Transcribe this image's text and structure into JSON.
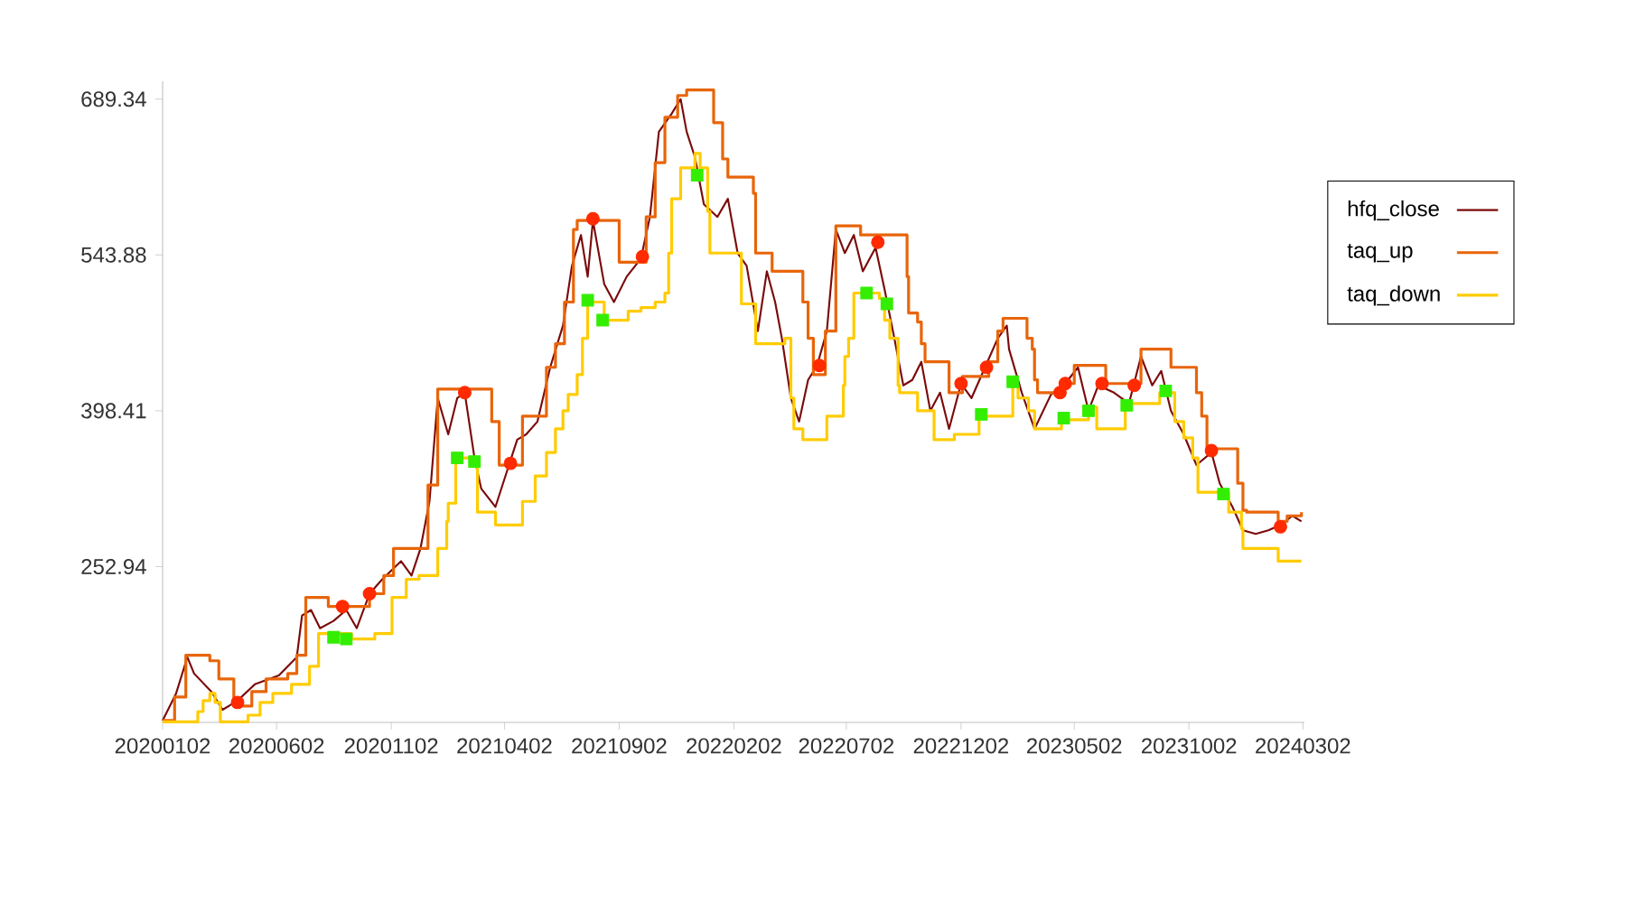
{
  "chart_data": {
    "type": "line",
    "ylim": [
      107.47,
      706
    ],
    "yticks": [
      252.94,
      398.41,
      543.88,
      689.34
    ],
    "xlim": [
      "2020-01-02",
      "2024-03-04"
    ],
    "xticks": [
      {
        "value": "2020-01-02",
        "label": "20200102"
      },
      {
        "value": "2020-06-02",
        "label": "20200602"
      },
      {
        "value": "2020-11-02",
        "label": "20201102"
      },
      {
        "value": "2021-04-02",
        "label": "20210402"
      },
      {
        "value": "2021-09-02",
        "label": "20210902"
      },
      {
        "value": "2022-02-02",
        "label": "20220202"
      },
      {
        "value": "2022-07-02",
        "label": "20220702"
      },
      {
        "value": "2022-12-02",
        "label": "20221202"
      },
      {
        "value": "2023-05-02",
        "label": "20230502"
      },
      {
        "value": "2023-10-02",
        "label": "20231002"
      },
      {
        "value": "2024-03-02",
        "label": "20240302"
      }
    ],
    "legend": "right",
    "marker": "none",
    "line_style": "solid",
    "series": [
      {
        "name": "hfq_close",
        "type": "line",
        "color": "#7b0a0a",
        "x": [
          "2020-01-02",
          "2020-01-20",
          "2020-02-04",
          "2020-02-13",
          "2020-03-07",
          "2020-03-22",
          "2020-04-11",
          "2020-05-04",
          "2020-06-05",
          "2020-06-29",
          "2020-07-06",
          "2020-07-18",
          "2020-07-30",
          "2020-08-17",
          "2020-09-03",
          "2020-09-17",
          "2020-10-04",
          "2020-10-21",
          "2020-11-15",
          "2020-11-29",
          "2020-12-11",
          "2020-12-23",
          "2021-01-03",
          "2021-01-17",
          "2021-01-29",
          "2021-02-08",
          "2021-02-21",
          "2021-03-02",
          "2021-03-21",
          "2021-04-08",
          "2021-04-19",
          "2021-05-01",
          "2021-05-16",
          "2021-06-02",
          "2021-06-19",
          "2021-07-01",
          "2021-07-13",
          "2021-07-22",
          "2021-07-29",
          "2021-08-13",
          "2021-08-26",
          "2021-09-12",
          "2021-10-01",
          "2021-10-13",
          "2021-10-25",
          "2021-11-11",
          "2021-11-23",
          "2021-12-01",
          "2021-12-12",
          "2021-12-24",
          "2022-01-11",
          "2022-01-25",
          "2022-02-07",
          "2022-02-19",
          "2022-03-06",
          "2022-03-18",
          "2022-03-29",
          "2022-04-07",
          "2022-04-19",
          "2022-04-30",
          "2022-05-12",
          "2022-05-24",
          "2022-06-06",
          "2022-06-18",
          "2022-06-30",
          "2022-07-12",
          "2022-07-24",
          "2022-08-10",
          "2022-08-22",
          "2022-09-04",
          "2022-09-16",
          "2022-09-28",
          "2022-10-10",
          "2022-10-22",
          "2022-11-04",
          "2022-11-16",
          "2022-12-02",
          "2022-12-16",
          "2023-01-03",
          "2023-01-20",
          "2023-02-01",
          "2023-02-04",
          "2023-02-21",
          "2023-03-10",
          "2023-04-01",
          "2023-04-20",
          "2023-05-07",
          "2023-05-21",
          "2023-06-03",
          "2023-06-24",
          "2023-07-14",
          "2023-07-30",
          "2023-08-14",
          "2023-08-26",
          "2023-09-08",
          "2023-09-25",
          "2023-10-12",
          "2023-11-01",
          "2023-11-12",
          "2023-11-29",
          "2023-12-13",
          "2023-12-30",
          "2024-01-16",
          "2024-02-01",
          "2024-02-17",
          "2024-02-29"
        ],
        "values": [
          109.2,
          134.5,
          168.4,
          153.1,
          136.2,
          119.3,
          127.8,
          143.0,
          151.4,
          168.4,
          207.3,
          212.4,
          195.4,
          202.2,
          212.4,
          195.4,
          227.6,
          241.1,
          258.0,
          244.5,
          269.9,
          313.8,
          410.3,
          376.4,
          410.3,
          415.3,
          354.4,
          325.7,
          308.7,
          347.7,
          371.4,
          376.4,
          388.3,
          439.0,
          477.9,
          533.7,
          562.5,
          523.6,
          576.0,
          516.8,
          499.9,
          523.6,
          540.5,
          579.4,
          658.9,
          675.8,
          689.3,
          658.9,
          635.2,
          591.2,
          579.4,
          596.3,
          545.6,
          533.7,
          472.8,
          528.6,
          499.9,
          466.1,
          410.3,
          388.3,
          427.2,
          440.7,
          472.8,
          567.6,
          545.6,
          562.5,
          528.6,
          550.6,
          511.7,
          466.1,
          422.1,
          427.2,
          444.1,
          398.4,
          415.3,
          381.5,
          423.8,
          410.3,
          439.0,
          466.1,
          477.9,
          455.9,
          415.3,
          381.5,
          413.6,
          423.8,
          439.0,
          398.4,
          422.1,
          415.3,
          405.2,
          449.1,
          422.1,
          435.6,
          398.4,
          376.4,
          347.7,
          359.5,
          330.7,
          308.7,
          286.8,
          283.4,
          286.8,
          291.8,
          300.3,
          295.2
        ]
      },
      {
        "name": "taq_up",
        "type": "step",
        "color": "#e8650a",
        "x": [
          "2020-01-02",
          "2020-01-18",
          "2020-02-02",
          "2020-03-05",
          "2020-03-17",
          "2020-04-06",
          "2020-04-30",
          "2020-05-19",
          "2020-06-17",
          "2020-06-29",
          "2020-07-11",
          "2020-08-10",
          "2020-10-04",
          "2020-10-23",
          "2020-11-05",
          "2020-12-21",
          "2021-01-03",
          "2021-03-16",
          "2021-03-26",
          "2021-04-26",
          "2021-05-28",
          "2021-06-09",
          "2021-06-21",
          "2021-07-03",
          "2021-07-08",
          "2021-09-02",
          "2021-10-08",
          "2021-10-20",
          "2021-11-02",
          "2021-11-19",
          "2021-12-01",
          "2022-01-06",
          "2022-01-18",
          "2022-01-25",
          "2022-02-28",
          "2022-03-03",
          "2022-03-25",
          "2022-05-05",
          "2022-05-12",
          "2022-05-19",
          "2022-06-04",
          "2022-06-18",
          "2022-07-21",
          "2022-09-21",
          "2022-09-23",
          "2022-10-05",
          "2022-10-10",
          "2022-10-15",
          "2022-11-16",
          "2022-12-04",
          "2023-01-08",
          "2023-01-20",
          "2023-01-27",
          "2023-02-28",
          "2023-03-07",
          "2023-03-10",
          "2023-03-14",
          "2023-04-15",
          "2023-05-02",
          "2023-06-13",
          "2023-07-30",
          "2023-09-08",
          "2023-10-12",
          "2023-10-19",
          "2023-10-26",
          "2023-12-06",
          "2023-12-13",
          "2023-12-18",
          "2024-01-29",
          "2024-02-10",
          "2024-02-29"
        ],
        "values": [
          109.2,
          131.1,
          170.1,
          165.0,
          148.1,
          122.7,
          136.2,
          148.1,
          153.1,
          170.1,
          224.2,
          215.7,
          227.6,
          244.5,
          269.9,
          329.0,
          418.7,
          388.3,
          347.7,
          393.4,
          439.0,
          461.0,
          499.9,
          567.6,
          576.0,
          537.1,
          579.4,
          630.1,
          672.4,
          692.7,
          697.8,
          667.4,
          633.5,
          616.6,
          601.4,
          545.6,
          528.6,
          499.9,
          466.1,
          432.2,
          472.8,
          571.0,
          562.5,
          523.6,
          489.7,
          481.3,
          461.0,
          444.1,
          415.3,
          430.5,
          444.1,
          472.8,
          484.7,
          466.1,
          455.9,
          427.2,
          415.3,
          423.8,
          440.7,
          423.8,
          455.9,
          439.0,
          415.3,
          393.4,
          362.9,
          330.7,
          305.4,
          303.7,
          295.2,
          300.3,
          303.7
        ]
      },
      {
        "name": "taq_down",
        "type": "step",
        "color": "#ffcc00",
        "x": [
          "2020-01-02",
          "2020-02-18",
          "2020-02-25",
          "2020-03-05",
          "2020-03-12",
          "2020-03-19",
          "2020-04-25",
          "2020-05-11",
          "2020-05-28",
          "2020-06-22",
          "2020-07-16",
          "2020-07-28",
          "2020-09-10",
          "2020-10-11",
          "2020-11-03",
          "2020-11-22",
          "2020-12-09",
          "2021-01-03",
          "2021-01-15",
          "2021-01-17",
          "2021-01-27",
          "2021-02-25",
          "2021-03-21",
          "2021-04-26",
          "2021-05-13",
          "2021-05-28",
          "2021-06-09",
          "2021-06-19",
          "2021-06-26",
          "2021-07-08",
          "2021-07-15",
          "2021-07-22",
          "2021-08-13",
          "2021-09-14",
          "2021-10-01",
          "2021-10-20",
          "2021-11-02",
          "2021-11-07",
          "2021-11-11",
          "2021-11-23",
          "2021-12-12",
          "2021-12-19",
          "2021-12-29",
          "2022-01-01",
          "2022-02-12",
          "2022-03-03",
          "2022-04-11",
          "2022-04-19",
          "2022-04-23",
          "2022-05-05",
          "2022-06-06",
          "2022-06-28",
          "2022-06-30",
          "2022-07-05",
          "2022-07-12",
          "2022-08-15",
          "2022-08-22",
          "2022-08-29",
          "2022-09-09",
          "2022-09-11",
          "2022-10-05",
          "2022-10-27",
          "2022-11-23",
          "2022-12-26",
          "2023-02-09",
          "2023-02-16",
          "2023-03-02",
          "2023-03-10",
          "2023-04-15",
          "2023-05-21",
          "2023-06-01",
          "2023-07-09",
          "2023-08-24",
          "2023-09-13",
          "2023-09-25",
          "2023-10-07",
          "2023-10-14",
          "2023-11-24",
          "2023-12-11",
          "2023-12-13",
          "2024-01-29",
          "2024-02-29"
        ],
        "values": [
          108,
          117.6,
          127.8,
          134.5,
          126.1,
          108,
          114.2,
          126.1,
          134.5,
          143.0,
          159.9,
          190.4,
          185.3,
          190.4,
          224.2,
          241.1,
          244.5,
          269.9,
          295.2,
          312.1,
          354.4,
          303.7,
          291.8,
          313.8,
          337.5,
          359.5,
          381.5,
          398.4,
          413.6,
          432.2,
          466.1,
          499.9,
          483.0,
          491.4,
          494.8,
          499.9,
          508.3,
          545.6,
          596.3,
          625.1,
          638.6,
          625.1,
          584.5,
          545.6,
          498.2,
          461.0,
          466.1,
          410.3,
          381.5,
          371.4,
          393.4,
          422.1,
          449.1,
          466.1,
          508.3,
          503.3,
          483.0,
          466.1,
          422.1,
          415.3,
          398.4,
          371.4,
          376.4,
          393.4,
          422.1,
          410.3,
          398.4,
          381.5,
          390.0,
          401.8,
          381.5,
          405.2,
          415.3,
          388.3,
          373.1,
          354.4,
          322.3,
          303.7,
          288.5,
          269.9,
          258.0,
          258.0
        ]
      },
      {
        "type": "scatter",
        "marker": "circle",
        "color": "#ff2a00",
        "x": [
          "2020-04-11",
          "2020-08-29",
          "2020-10-04",
          "2021-02-08",
          "2021-04-10",
          "2021-07-29",
          "2021-10-03",
          "2022-05-27",
          "2022-08-13",
          "2022-12-02",
          "2023-01-05",
          "2023-04-13",
          "2023-04-20",
          "2023-06-08",
          "2023-07-21",
          "2023-11-01",
          "2024-02-01"
        ],
        "values": [
          126.1,
          215.7,
          227.6,
          415.3,
          349.3,
          577.7,
          542.2,
          440.7,
          555.7,
          423.8,
          439.0,
          415.3,
          423.8,
          423.8,
          422.1,
          361.2,
          290.1
        ]
      },
      {
        "type": "scatter",
        "marker": "square",
        "color": "#33ee00",
        "x": [
          "2020-08-17",
          "2020-09-03",
          "2021-01-29",
          "2021-02-21",
          "2021-07-22",
          "2021-08-11",
          "2021-12-15",
          "2022-07-29",
          "2022-08-25",
          "2022-12-29",
          "2023-02-09",
          "2023-04-18",
          "2023-05-21",
          "2023-07-11",
          "2023-09-01",
          "2023-11-17"
        ],
        "values": [
          186.9,
          185.3,
          354.4,
          351.0,
          501.6,
          483.0,
          618.3,
          508.3,
          498.2,
          395.0,
          425.5,
          391.6,
          398.4,
          403.5,
          417.0,
          320.6
        ]
      }
    ]
  }
}
